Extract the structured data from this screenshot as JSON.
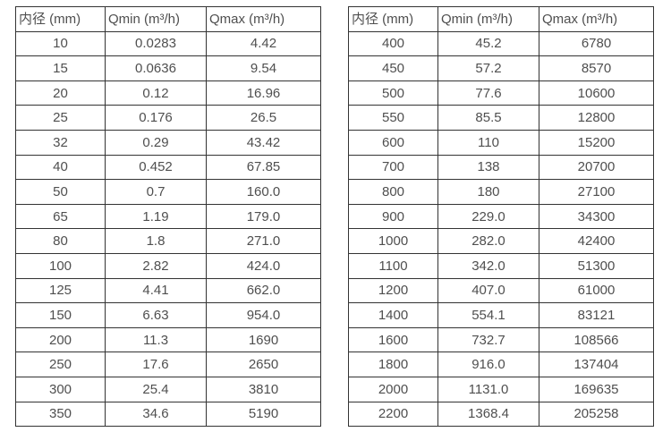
{
  "colors": {
    "background": "#ffffff",
    "border": "#333333",
    "text": "#4f4f4f"
  },
  "tables": [
    {
      "name": "flow-spec-table-small-diameters",
      "headers": [
        "内径 (mm)",
        "Qmin (m³/h)",
        "Qmax (m³/h)"
      ],
      "rows": [
        [
          "10",
          "0.0283",
          "4.42"
        ],
        [
          "15",
          "0.0636",
          "9.54"
        ],
        [
          "20",
          "0.12",
          "16.96"
        ],
        [
          "25",
          "0.176",
          "26.5"
        ],
        [
          "32",
          "0.29",
          "43.42"
        ],
        [
          "40",
          "0.452",
          "67.85"
        ],
        [
          "50",
          "0.7",
          "160.0"
        ],
        [
          "65",
          "1.19",
          "179.0"
        ],
        [
          "80",
          "1.8",
          "271.0"
        ],
        [
          "100",
          "2.82",
          "424.0"
        ],
        [
          "125",
          "4.41",
          "662.0"
        ],
        [
          "150",
          "6.63",
          "954.0"
        ],
        [
          "200",
          "11.3",
          "1690"
        ],
        [
          "250",
          "17.6",
          "2650"
        ],
        [
          "300",
          "25.4",
          "3810"
        ],
        [
          "350",
          "34.6",
          "5190"
        ]
      ]
    },
    {
      "name": "flow-spec-table-large-diameters",
      "headers": [
        "内径 (mm)",
        "Qmin (m³/h)",
        "Qmax (m³/h)"
      ],
      "rows": [
        [
          "400",
          "45.2",
          "6780"
        ],
        [
          "450",
          "57.2",
          "8570"
        ],
        [
          "500",
          "77.6",
          "10600"
        ],
        [
          "550",
          "85.5",
          "12800"
        ],
        [
          "600",
          "110",
          "15200"
        ],
        [
          "700",
          "138",
          "20700"
        ],
        [
          "800",
          "180",
          "27100"
        ],
        [
          "900",
          "229.0",
          "34300"
        ],
        [
          "1000",
          "282.0",
          "42400"
        ],
        [
          "1100",
          "342.0",
          "51300"
        ],
        [
          "1200",
          "407.0",
          "61000"
        ],
        [
          "1400",
          "554.1",
          "83121"
        ],
        [
          "1600",
          "732.7",
          "108566"
        ],
        [
          "1800",
          "916.0",
          "137404"
        ],
        [
          "2000",
          "1131.0",
          "169635"
        ],
        [
          "2200",
          "1368.4",
          "205258"
        ]
      ]
    }
  ]
}
